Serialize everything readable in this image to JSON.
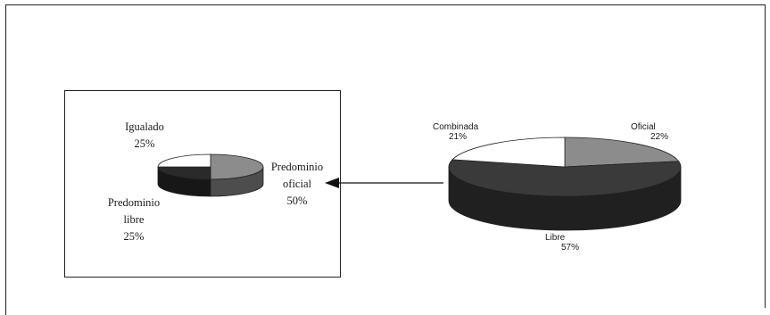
{
  "chart_data": [
    {
      "type": "pie",
      "categories": [
        "Predominio oficial",
        "Predominio libre",
        "Igualado"
      ],
      "values": [
        50,
        25,
        25
      ],
      "labels": {
        "igualado": {
          "name": "Igualado",
          "pct": "25%"
        },
        "oficial": {
          "line1": "Predominio",
          "line2": "oficial",
          "pct": "50%"
        },
        "libre": {
          "line1": "Predominio",
          "line2": "libre",
          "pct": "25%"
        }
      },
      "colors": [
        "#8c8c8c",
        "#2a2a2a",
        "#ffffff"
      ]
    },
    {
      "type": "pie",
      "categories": [
        "Oficial",
        "Libre",
        "Combinada"
      ],
      "values": [
        22,
        57,
        21
      ],
      "labels": {
        "oficial": {
          "name": "Oficial",
          "pct": "22%"
        },
        "libre": {
          "name": "Libre",
          "pct": "57%"
        },
        "combinada": {
          "name": "Combinada",
          "pct": "21%"
        }
      },
      "colors": [
        "#8c8c8c",
        "#3a3a3a",
        "#ffffff"
      ]
    }
  ]
}
